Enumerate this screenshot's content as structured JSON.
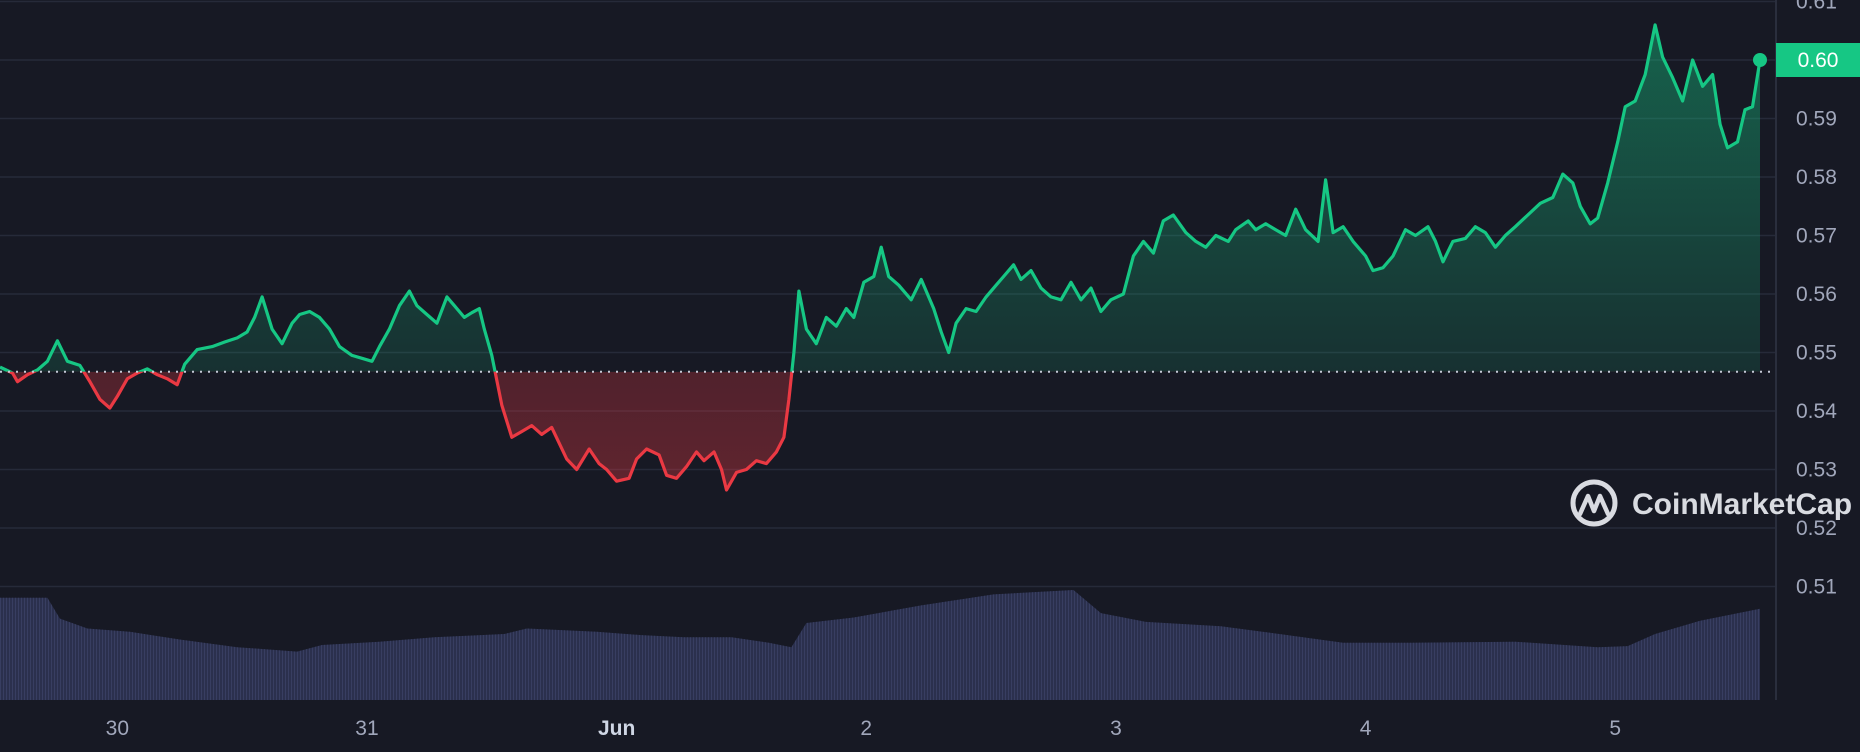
{
  "chart_data": {
    "type": "line",
    "y_ticks": [
      "0.61",
      "0.60",
      "0.59",
      "0.58",
      "0.57",
      "0.56",
      "0.55",
      "0.54",
      "0.53",
      "0.52",
      "0.51"
    ],
    "x_ticks": [
      {
        "label": "30",
        "t": 1.0,
        "bold": false
      },
      {
        "label": "31",
        "t": 2.0,
        "bold": false
      },
      {
        "label": "Jun",
        "t": 3.0,
        "bold": true
      },
      {
        "label": "2",
        "t": 4.0,
        "bold": false
      },
      {
        "label": "3",
        "t": 5.0,
        "bold": false
      },
      {
        "label": "4",
        "t": 6.0,
        "bold": false
      },
      {
        "label": "5",
        "t": 7.0,
        "bold": false
      }
    ],
    "x_range": [
      0.53,
      7.58
    ],
    "y_range": [
      0.5,
      0.62
    ],
    "baseline": 0.5467,
    "current_price": "0.60",
    "up_color": "#16c784",
    "down_color": "#ea3943",
    "price_points": [
      [
        0.53,
        0.5475
      ],
      [
        0.58,
        0.5465
      ],
      [
        0.6,
        0.545
      ],
      [
        0.64,
        0.5462
      ],
      [
        0.68,
        0.547
      ],
      [
        0.72,
        0.5485
      ],
      [
        0.76,
        0.552
      ],
      [
        0.8,
        0.5485
      ],
      [
        0.85,
        0.5478
      ],
      [
        0.89,
        0.545
      ],
      [
        0.93,
        0.542
      ],
      [
        0.97,
        0.5405
      ],
      [
        1.0,
        0.5425
      ],
      [
        1.04,
        0.5455
      ],
      [
        1.08,
        0.5465
      ],
      [
        1.12,
        0.5472
      ],
      [
        1.16,
        0.5462
      ],
      [
        1.2,
        0.5455
      ],
      [
        1.24,
        0.5445
      ],
      [
        1.27,
        0.548
      ],
      [
        1.32,
        0.5505
      ],
      [
        1.38,
        0.551
      ],
      [
        1.43,
        0.5518
      ],
      [
        1.48,
        0.5525
      ],
      [
        1.52,
        0.5535
      ],
      [
        1.55,
        0.556
      ],
      [
        1.58,
        0.5595
      ],
      [
        1.62,
        0.554
      ],
      [
        1.66,
        0.5515
      ],
      [
        1.7,
        0.555
      ],
      [
        1.73,
        0.5565
      ],
      [
        1.77,
        0.557
      ],
      [
        1.81,
        0.556
      ],
      [
        1.85,
        0.554
      ],
      [
        1.89,
        0.551
      ],
      [
        1.94,
        0.5495
      ],
      [
        1.98,
        0.549
      ],
      [
        2.02,
        0.5485
      ],
      [
        2.05,
        0.551
      ],
      [
        2.09,
        0.554
      ],
      [
        2.13,
        0.558
      ],
      [
        2.17,
        0.5605
      ],
      [
        2.2,
        0.558
      ],
      [
        2.24,
        0.5565
      ],
      [
        2.28,
        0.555
      ],
      [
        2.32,
        0.5595
      ],
      [
        2.35,
        0.558
      ],
      [
        2.39,
        0.556
      ],
      [
        2.42,
        0.5568
      ],
      [
        2.45,
        0.5575
      ],
      [
        2.47,
        0.554
      ],
      [
        2.5,
        0.5495
      ],
      [
        2.54,
        0.541
      ],
      [
        2.58,
        0.5355
      ],
      [
        2.62,
        0.5365
      ],
      [
        2.66,
        0.5375
      ],
      [
        2.7,
        0.536
      ],
      [
        2.74,
        0.5372
      ],
      [
        2.77,
        0.5345
      ],
      [
        2.8,
        0.5318
      ],
      [
        2.84,
        0.53
      ],
      [
        2.89,
        0.5335
      ],
      [
        2.93,
        0.531
      ],
      [
        2.96,
        0.53
      ],
      [
        3.0,
        0.528
      ],
      [
        3.05,
        0.5285
      ],
      [
        3.08,
        0.5318
      ],
      [
        3.12,
        0.5335
      ],
      [
        3.17,
        0.5325
      ],
      [
        3.2,
        0.529
      ],
      [
        3.24,
        0.5285
      ],
      [
        3.28,
        0.5305
      ],
      [
        3.32,
        0.533
      ],
      [
        3.35,
        0.5315
      ],
      [
        3.39,
        0.533
      ],
      [
        3.42,
        0.53
      ],
      [
        3.44,
        0.5265
      ],
      [
        3.48,
        0.5295
      ],
      [
        3.52,
        0.53
      ],
      [
        3.56,
        0.5315
      ],
      [
        3.6,
        0.531
      ],
      [
        3.64,
        0.533
      ],
      [
        3.67,
        0.5355
      ],
      [
        3.69,
        0.542
      ],
      [
        3.71,
        0.55
      ],
      [
        3.73,
        0.5605
      ],
      [
        3.76,
        0.554
      ],
      [
        3.8,
        0.5515
      ],
      [
        3.84,
        0.556
      ],
      [
        3.88,
        0.5545
      ],
      [
        3.92,
        0.5575
      ],
      [
        3.95,
        0.556
      ],
      [
        3.99,
        0.562
      ],
      [
        4.03,
        0.563
      ],
      [
        4.06,
        0.568
      ],
      [
        4.09,
        0.563
      ],
      [
        4.13,
        0.5615
      ],
      [
        4.18,
        0.559
      ],
      [
        4.22,
        0.5625
      ],
      [
        4.27,
        0.5575
      ],
      [
        4.3,
        0.5535
      ],
      [
        4.33,
        0.55
      ],
      [
        4.36,
        0.555
      ],
      [
        4.4,
        0.5575
      ],
      [
        4.44,
        0.557
      ],
      [
        4.48,
        0.5595
      ],
      [
        4.52,
        0.5615
      ],
      [
        4.55,
        0.563
      ],
      [
        4.59,
        0.565
      ],
      [
        4.62,
        0.5625
      ],
      [
        4.66,
        0.564
      ],
      [
        4.7,
        0.561
      ],
      [
        4.74,
        0.5595
      ],
      [
        4.78,
        0.559
      ],
      [
        4.82,
        0.562
      ],
      [
        4.86,
        0.559
      ],
      [
        4.9,
        0.561
      ],
      [
        4.94,
        0.557
      ],
      [
        4.98,
        0.559
      ],
      [
        5.03,
        0.56
      ],
      [
        5.07,
        0.5665
      ],
      [
        5.11,
        0.569
      ],
      [
        5.15,
        0.567
      ],
      [
        5.19,
        0.5725
      ],
      [
        5.23,
        0.5735
      ],
      [
        5.28,
        0.5705
      ],
      [
        5.32,
        0.569
      ],
      [
        5.36,
        0.568
      ],
      [
        5.4,
        0.57
      ],
      [
        5.45,
        0.569
      ],
      [
        5.48,
        0.571
      ],
      [
        5.53,
        0.5725
      ],
      [
        5.56,
        0.571
      ],
      [
        5.6,
        0.572
      ],
      [
        5.64,
        0.571
      ],
      [
        5.68,
        0.57
      ],
      [
        5.72,
        0.5745
      ],
      [
        5.76,
        0.571
      ],
      [
        5.81,
        0.569
      ],
      [
        5.84,
        0.5795
      ],
      [
        5.87,
        0.5705
      ],
      [
        5.91,
        0.5715
      ],
      [
        5.95,
        0.569
      ],
      [
        6.0,
        0.5665
      ],
      [
        6.03,
        0.564
      ],
      [
        6.07,
        0.5645
      ],
      [
        6.11,
        0.5665
      ],
      [
        6.16,
        0.571
      ],
      [
        6.2,
        0.57
      ],
      [
        6.25,
        0.5715
      ],
      [
        6.28,
        0.569
      ],
      [
        6.31,
        0.5655
      ],
      [
        6.35,
        0.569
      ],
      [
        6.4,
        0.5695
      ],
      [
        6.44,
        0.5715
      ],
      [
        6.48,
        0.5705
      ],
      [
        6.52,
        0.568
      ],
      [
        6.56,
        0.57
      ],
      [
        6.6,
        0.5715
      ],
      [
        6.65,
        0.5735
      ],
      [
        6.7,
        0.5755
      ],
      [
        6.75,
        0.5765
      ],
      [
        6.79,
        0.5805
      ],
      [
        6.83,
        0.579
      ],
      [
        6.86,
        0.575
      ],
      [
        6.9,
        0.572
      ],
      [
        6.93,
        0.573
      ],
      [
        6.97,
        0.579
      ],
      [
        7.01,
        0.586
      ],
      [
        7.04,
        0.592
      ],
      [
        7.08,
        0.593
      ],
      [
        7.12,
        0.5975
      ],
      [
        7.16,
        0.606
      ],
      [
        7.19,
        0.6005
      ],
      [
        7.23,
        0.597
      ],
      [
        7.27,
        0.593
      ],
      [
        7.31,
        0.6
      ],
      [
        7.35,
        0.5955
      ],
      [
        7.39,
        0.5975
      ],
      [
        7.42,
        0.589
      ],
      [
        7.45,
        0.585
      ],
      [
        7.49,
        0.586
      ],
      [
        7.52,
        0.5915
      ],
      [
        7.55,
        0.592
      ],
      [
        7.58,
        0.6
      ]
    ],
    "volume_points": [
      [
        0.53,
        0.93
      ],
      [
        0.72,
        0.93
      ],
      [
        0.77,
        0.74
      ],
      [
        0.88,
        0.65
      ],
      [
        1.05,
        0.62
      ],
      [
        1.25,
        0.55
      ],
      [
        1.48,
        0.48
      ],
      [
        1.72,
        0.44
      ],
      [
        1.82,
        0.5
      ],
      [
        2.05,
        0.53
      ],
      [
        2.27,
        0.57
      ],
      [
        2.55,
        0.6
      ],
      [
        2.64,
        0.65
      ],
      [
        2.92,
        0.62
      ],
      [
        3.1,
        0.59
      ],
      [
        3.27,
        0.57
      ],
      [
        3.46,
        0.57
      ],
      [
        3.61,
        0.52
      ],
      [
        3.7,
        0.48
      ],
      [
        3.76,
        0.7
      ],
      [
        3.95,
        0.75
      ],
      [
        4.22,
        0.86
      ],
      [
        4.51,
        0.96
      ],
      [
        4.83,
        1.0
      ],
      [
        4.94,
        0.79
      ],
      [
        5.12,
        0.71
      ],
      [
        5.42,
        0.67
      ],
      [
        5.72,
        0.58
      ],
      [
        5.91,
        0.52
      ],
      [
        6.18,
        0.52
      ],
      [
        6.6,
        0.53
      ],
      [
        6.93,
        0.48
      ],
      [
        7.05,
        0.49
      ],
      [
        7.16,
        0.6
      ],
      [
        7.34,
        0.72
      ],
      [
        7.58,
        0.83
      ]
    ]
  },
  "watermark": {
    "text": "CoinMarketCap",
    "logo_icon": "coinmarketcap-logo-icon"
  }
}
